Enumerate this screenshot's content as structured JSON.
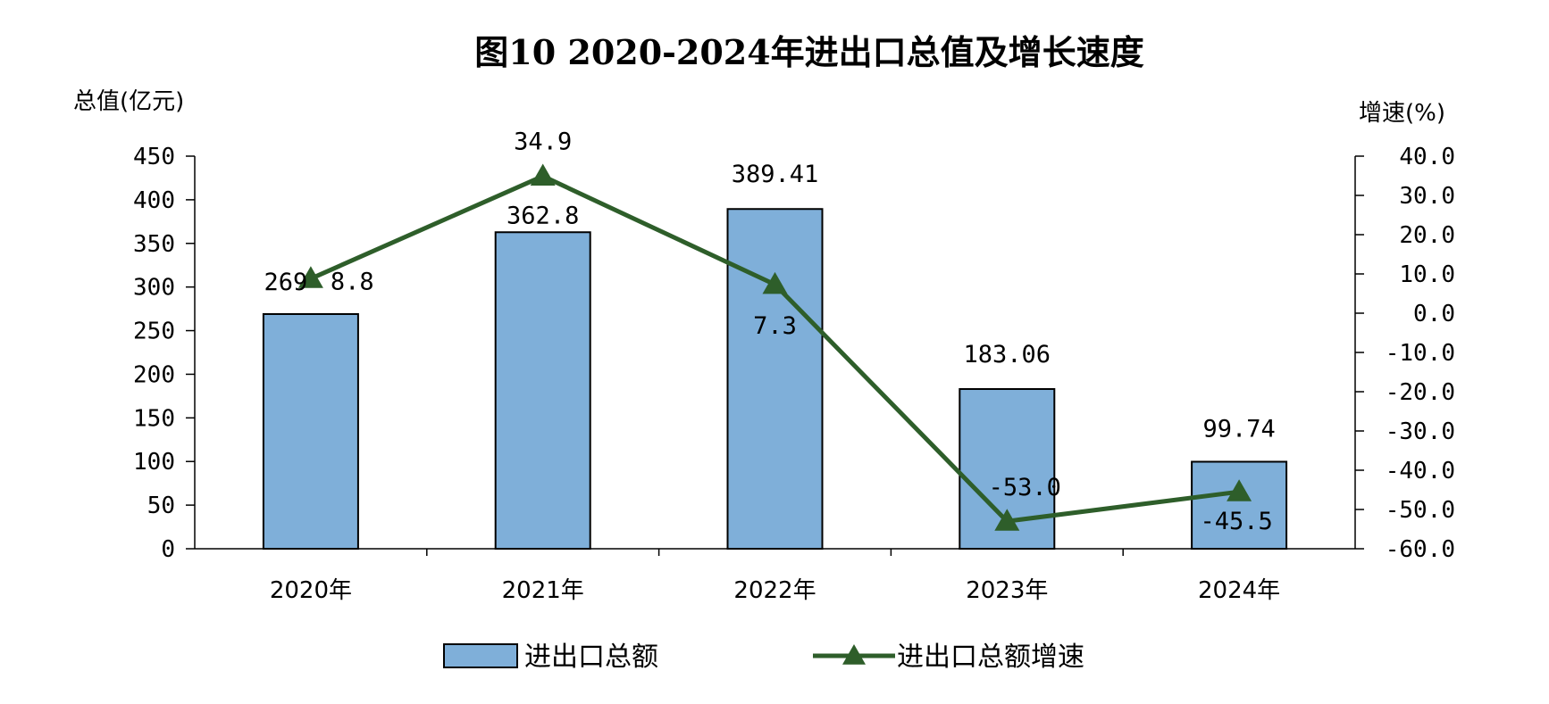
{
  "chart_data": {
    "type": "bar",
    "title": "图10 2020-2024年进出口总值及增长速度",
    "categories": [
      "2020年",
      "2021年",
      "2022年",
      "2023年",
      "2024年"
    ],
    "y_left": {
      "label": "总值(亿元)",
      "ylim": [
        0,
        450
      ],
      "ticks": [
        "0",
        "50",
        "100",
        "150",
        "200",
        "250",
        "300",
        "350",
        "400",
        "450"
      ]
    },
    "y_right": {
      "label": "增速(%)",
      "ylim": [
        -60,
        40
      ],
      "ticks": [
        "-60.0",
        "-50.0",
        "-40.0",
        "-30.0",
        "-20.0",
        "-10.0",
        "0.0",
        "10.0",
        "20.0",
        "30.0",
        "40.0"
      ]
    },
    "series": [
      {
        "name": "进出口总额",
        "type": "bar",
        "axis": "left",
        "values": [
          269,
          362.8,
          389.41,
          183.06,
          99.74
        ],
        "labels": [
          "269",
          "362.8",
          "389.41",
          "183.06",
          "99.74"
        ],
        "color": "#7fafd9"
      },
      {
        "name": "进出口总额增速",
        "type": "line",
        "axis": "right",
        "marker": "triangle",
        "values": [
          8.8,
          34.9,
          7.3,
          -53.0,
          -45.5
        ],
        "labels": [
          "8.8",
          "34.9",
          "7.3",
          "-53.0",
          "-45.5"
        ],
        "color": "#2e5e2a"
      }
    ],
    "legend_position": "bottom",
    "grid": false
  }
}
